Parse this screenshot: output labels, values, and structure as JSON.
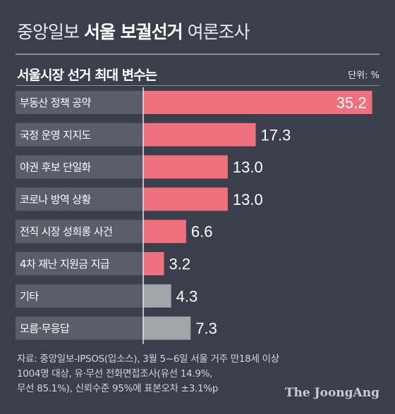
{
  "header": {
    "title_pre": "중앙일보",
    "title_bold": "서울 보궐선거",
    "title_post": "여론조사",
    "subtitle": "서울시장 선거 최대 변수는",
    "unit": "단위: %"
  },
  "chart_data": {
    "type": "bar",
    "orientation": "horizontal",
    "title": "서울시장 선거 최대 변수는",
    "unit": "단위: %",
    "categories": [
      "부동산 정책 공약",
      "국정 운영 지지도",
      "야권 후보 단일화",
      "코로나 방역 상황",
      "전직 시장 성희롱 사건",
      "4차 재난 지원금 지급",
      "기타",
      "모름·무응답"
    ],
    "values": [
      35.2,
      17.3,
      13.0,
      13.0,
      6.6,
      3.2,
      4.3,
      7.3
    ],
    "value_labels": [
      "35.2",
      "17.3",
      "13.0",
      "13.0",
      "6.6",
      "3.2",
      "4.3",
      "7.3"
    ],
    "xlim": [
      0,
      36
    ],
    "colors": [
      "#f0707d",
      "#f0707d",
      "#f0707d",
      "#f0707d",
      "#f0707d",
      "#f0707d",
      "#a3a5ab",
      "#a3a5ab"
    ],
    "grid": false,
    "legend": "none"
  },
  "footer": {
    "source_lines": [
      "자료: 중앙일보-IPSOS(입소스), 3월 5~6일 서울 거주 만18세 이상",
      "1004명 대상, 유·무선 전화면접조사(유선 14.9%,",
      "무선 85.1%), 신뢰수준 95%에 표본오차 ±3.1%p"
    ],
    "logo": "The JoongAng"
  }
}
